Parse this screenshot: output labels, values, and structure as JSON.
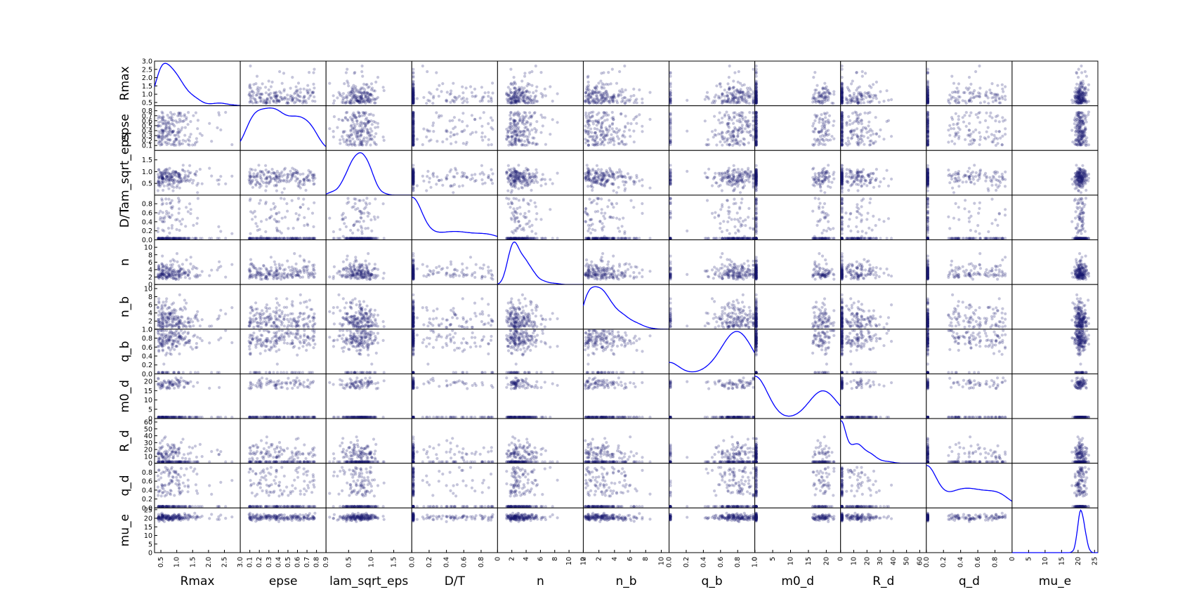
{
  "chart_data": {
    "type": "scatter_matrix",
    "diagonal": "kde",
    "variables": [
      {
        "name": "Rmax",
        "range": [
          0.3,
          3.0
        ],
        "xticks": [
          0.5,
          1.0,
          1.5,
          2.0,
          2.5,
          3.0
        ],
        "xtick_labels": [
          "0.5",
          "1.0",
          "1.5",
          "2.0",
          "2.5",
          "3.0"
        ],
        "yticks": [
          0.5,
          1.0,
          1.5,
          2.0,
          2.5,
          3.0
        ],
        "ytick_labels": [
          "0.5",
          "1.0",
          "1.5",
          "2.0",
          "2.5",
          "3.0"
        ],
        "kde_peak": 0.78
      },
      {
        "name": "epse",
        "range": [
          0.0,
          0.9
        ],
        "xticks": [
          0.1,
          0.2,
          0.3,
          0.4,
          0.5,
          0.6,
          0.7,
          0.8,
          0.9
        ],
        "xtick_labels": [
          "0.1",
          "0.2",
          "0.3",
          "0.4",
          "0.5",
          "0.6",
          "0.7",
          "0.8",
          "0.9"
        ],
        "yticks": [
          0.1,
          0.2,
          0.3,
          0.4,
          0.5,
          0.6,
          0.7,
          0.8
        ],
        "ytick_labels": [
          "0.1",
          "0.2",
          "0.3",
          "0.4",
          "0.5",
          "0.6",
          "0.7",
          "0.8"
        ],
        "kde_peak": 0.16
      },
      {
        "name": "lam_sqrt_eps",
        "range": [
          0.0,
          1.9
        ],
        "xticks": [
          0.5,
          1.0,
          1.5
        ],
        "xtick_labels": [
          "0.5",
          "1.0",
          "1.5"
        ],
        "yticks": [
          0.5,
          1.0,
          1.5
        ],
        "ytick_labels": [
          "0.5",
          "1.0",
          "1.5"
        ],
        "kde_peak": 0.75
      },
      {
        "name": "D/T",
        "range": [
          0.0,
          0.99
        ],
        "xticks": [
          0.0,
          0.2,
          0.4,
          0.6,
          0.8
        ],
        "xtick_labels": [
          "0.0",
          "0.2",
          "0.4",
          "0.6",
          "0.8"
        ],
        "yticks": [
          0.0,
          0.2,
          0.4,
          0.6,
          0.8
        ],
        "ytick_labels": [
          "0.0",
          "0.2",
          "0.4",
          "0.6",
          "0.8"
        ],
        "kde_peak": 0.0
      },
      {
        "name": "n",
        "range": [
          0.0,
          12.0
        ],
        "xticks": [
          0,
          2,
          4,
          6,
          8,
          10,
          12
        ],
        "xtick_labels": [
          "0",
          "2",
          "4",
          "6",
          "8",
          "10",
          "12"
        ],
        "yticks": [
          0,
          2,
          4,
          6,
          8,
          10
        ],
        "ytick_labels": [
          "0",
          "2",
          "4",
          "6",
          "8",
          "10"
        ],
        "kde_peak": 2.8
      },
      {
        "name": "n_b",
        "range": [
          0.0,
          11.0
        ],
        "xticks": [
          0,
          2,
          4,
          6,
          8,
          10
        ],
        "xtick_labels": [
          "0",
          "2",
          "4",
          "6",
          "8",
          "10"
        ],
        "yticks": [
          0,
          2,
          4,
          6,
          8,
          10
        ],
        "ytick_labels": [
          "0",
          "2",
          "4",
          "6",
          "8",
          "10"
        ],
        "kde_peak": 0.4
      },
      {
        "name": "q_b",
        "range": [
          0.0,
          1.0
        ],
        "xticks": [
          0.0,
          0.2,
          0.4,
          0.6,
          0.8,
          1.0
        ],
        "xtick_labels": [
          "0.0",
          "0.2",
          "0.4",
          "0.6",
          "0.8",
          "1.0"
        ],
        "yticks": [
          0.0,
          0.2,
          0.4,
          0.6,
          0.8,
          1.0
        ],
        "ytick_labels": [
          "0.0",
          "0.2",
          "0.4",
          "0.6",
          "0.8",
          "1.0"
        ],
        "kde_peak": 0.8
      },
      {
        "name": "m0_d",
        "range": [
          0.0,
          24.0
        ],
        "xticks": [
          0,
          5,
          10,
          15,
          20
        ],
        "xtick_labels": [
          "0",
          "5",
          "10",
          "15",
          "20"
        ],
        "yticks": [
          0,
          5,
          10,
          15,
          20
        ],
        "ytick_labels": [
          "0",
          "5",
          "10",
          "15",
          "20"
        ],
        "kde_peak": 0.0
      },
      {
        "name": "R_d",
        "range": [
          0.0,
          65.0
        ],
        "xticks": [
          0,
          10,
          20,
          30,
          40,
          50,
          60
        ],
        "xtick_labels": [
          "0",
          "10",
          "20",
          "30",
          "40",
          "50",
          "60"
        ],
        "yticks": [
          0,
          10,
          20,
          30,
          40,
          50,
          60
        ],
        "ytick_labels": [
          "0",
          "10",
          "20",
          "30",
          "40",
          "50",
          "60"
        ],
        "kde_peak": 0.0
      },
      {
        "name": "q_d",
        "range": [
          0.0,
          1.0
        ],
        "xticks": [
          0.0,
          0.2,
          0.4,
          0.6,
          0.8
        ],
        "xtick_labels": [
          "0.0",
          "0.2",
          "0.4",
          "0.6",
          "0.8"
        ],
        "yticks": [
          0.0,
          0.2,
          0.4,
          0.6,
          0.8
        ],
        "ytick_labels": [
          "0.0",
          "0.2",
          "0.4",
          "0.6",
          "0.8"
        ],
        "kde_peak": 0.0
      },
      {
        "name": "mu_e",
        "range": [
          0.0,
          26.0
        ],
        "xticks": [
          0,
          5,
          10,
          15,
          20,
          25
        ],
        "xtick_labels": [
          "0",
          "5",
          "10",
          "15",
          "20",
          "25"
        ],
        "yticks": [
          0,
          5,
          10,
          15,
          20,
          25
        ],
        "ytick_labels": [
          "0",
          "5",
          "10",
          "15",
          "20",
          "25"
        ],
        "kde_peak": 21.0
      }
    ],
    "scatter_style": {
      "marker": "circle",
      "color": "#191970",
      "alpha": 0.25
    },
    "kde_style": {
      "color": "#0000ff"
    },
    "n_points": 180
  }
}
